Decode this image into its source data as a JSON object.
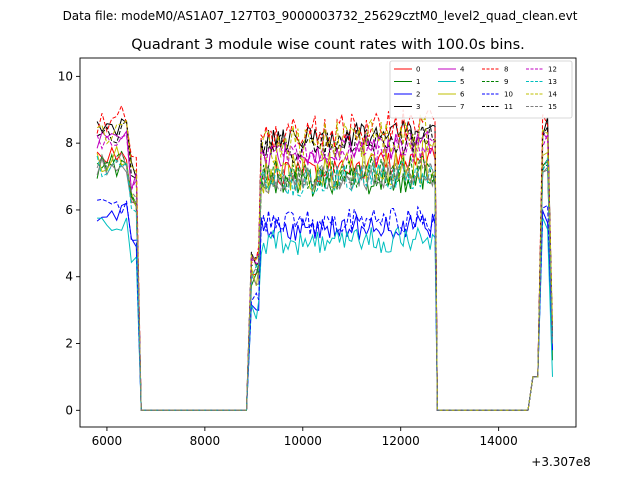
{
  "figure": {
    "suptitle": "Data file: modeM0/AS1A07_127T03_9000003732_25629cztM0_level2_quad_clean.evt"
  },
  "chart_data": {
    "type": "line",
    "title": "Quadrant 3 module wise count rates with 100.0s bins.",
    "xlabel": "",
    "ylabel": "",
    "x_offset_label": "+3.307e8",
    "xlim": [
      5450,
      15580
    ],
    "ylim": [
      -0.5,
      10.55
    ],
    "xticks": [
      6000,
      8000,
      10000,
      12000,
      14000
    ],
    "yticks": [
      0,
      2,
      4,
      6,
      8,
      10
    ],
    "grid": false,
    "legend_placement": "top-right",
    "legend_columns": 4,
    "x_segments": [
      {
        "start": 5800,
        "step": 100,
        "count": 10
      },
      {
        "start": 6750,
        "step": 100,
        "count": 23
      },
      {
        "start": 9050,
        "step": 50,
        "count": 75
      },
      {
        "start": 12800,
        "step": 100,
        "count": 20
      },
      {
        "start": 14800,
        "step": 100,
        "count": 3
      },
      {
        "start": 15100,
        "step": 100,
        "count": 1
      }
    ],
    "series": [
      {
        "name": "0",
        "color": "#ff0000",
        "dash": "solid",
        "base": 7.6,
        "jitter": 0.3,
        "end": 2.0,
        "slope": 0.05
      },
      {
        "name": "1",
        "color": "#008000",
        "dash": "solid",
        "base": 7.3,
        "jitter": 0.35,
        "end": 1.5,
        "slope": 0.02
      },
      {
        "name": "2",
        "color": "#0000ff",
        "dash": "solid",
        "base": 5.9,
        "jitter": 0.3,
        "end": 1.8,
        "slope": 0.02
      },
      {
        "name": "3",
        "color": "#000000",
        "dash": "solid",
        "base": 8.5,
        "jitter": 0.3,
        "end": 2.2,
        "slope": 0.05
      },
      {
        "name": "4",
        "color": "#c000c0",
        "dash": "solid",
        "base": 8.1,
        "jitter": 0.3,
        "end": 2.0,
        "slope": 0.06
      },
      {
        "name": "5",
        "color": "#00bfbf",
        "dash": "solid",
        "base": 5.5,
        "jitter": 0.3,
        "end": 1.0,
        "slope": 0.02
      },
      {
        "name": "6",
        "color": "#bfbf00",
        "dash": "solid",
        "base": 7.6,
        "jitter": 0.5,
        "end": 2.4,
        "slope": 0.05
      },
      {
        "name": "7",
        "color": "#7f7f7f",
        "dash": "solid",
        "base": 7.3,
        "jitter": 0.3,
        "end": 2.0,
        "slope": 0.04
      },
      {
        "name": "8",
        "color": "#ff0000",
        "dash": "dashed",
        "base": 8.7,
        "jitter": 0.4,
        "end": 2.4,
        "slope": 0.05
      },
      {
        "name": "9",
        "color": "#008000",
        "dash": "dashed",
        "base": 7.5,
        "jitter": 0.35,
        "end": 2.0,
        "slope": 0.03
      },
      {
        "name": "10",
        "color": "#0000ff",
        "dash": "dashed",
        "base": 6.1,
        "jitter": 0.3,
        "end": 2.0,
        "slope": 0.02
      },
      {
        "name": "11",
        "color": "#000000",
        "dash": "dashed",
        "base": 8.3,
        "jitter": 0.35,
        "end": 2.2,
        "slope": 0.05
      },
      {
        "name": "12",
        "color": "#c000c0",
        "dash": "dashed",
        "base": 8.0,
        "jitter": 0.3,
        "end": 2.0,
        "slope": 0.05
      },
      {
        "name": "13",
        "color": "#00bfbf",
        "dash": "dashed",
        "base": 7.3,
        "jitter": 0.35,
        "end": 2.0,
        "slope": 0.04
      },
      {
        "name": "14",
        "color": "#bfbf00",
        "dash": "dashed",
        "base": 8.4,
        "jitter": 0.45,
        "end": 2.6,
        "slope": 0.06
      },
      {
        "name": "15",
        "color": "#7f7f7f",
        "dash": "dashed",
        "base": 7.4,
        "jitter": 0.3,
        "end": 2.0,
        "slope": 0.04
      }
    ],
    "profile": {
      "gap1": [
        6750,
        8950
      ],
      "gap2": [
        12800,
        14700
      ],
      "peak_x": 15000
    }
  }
}
